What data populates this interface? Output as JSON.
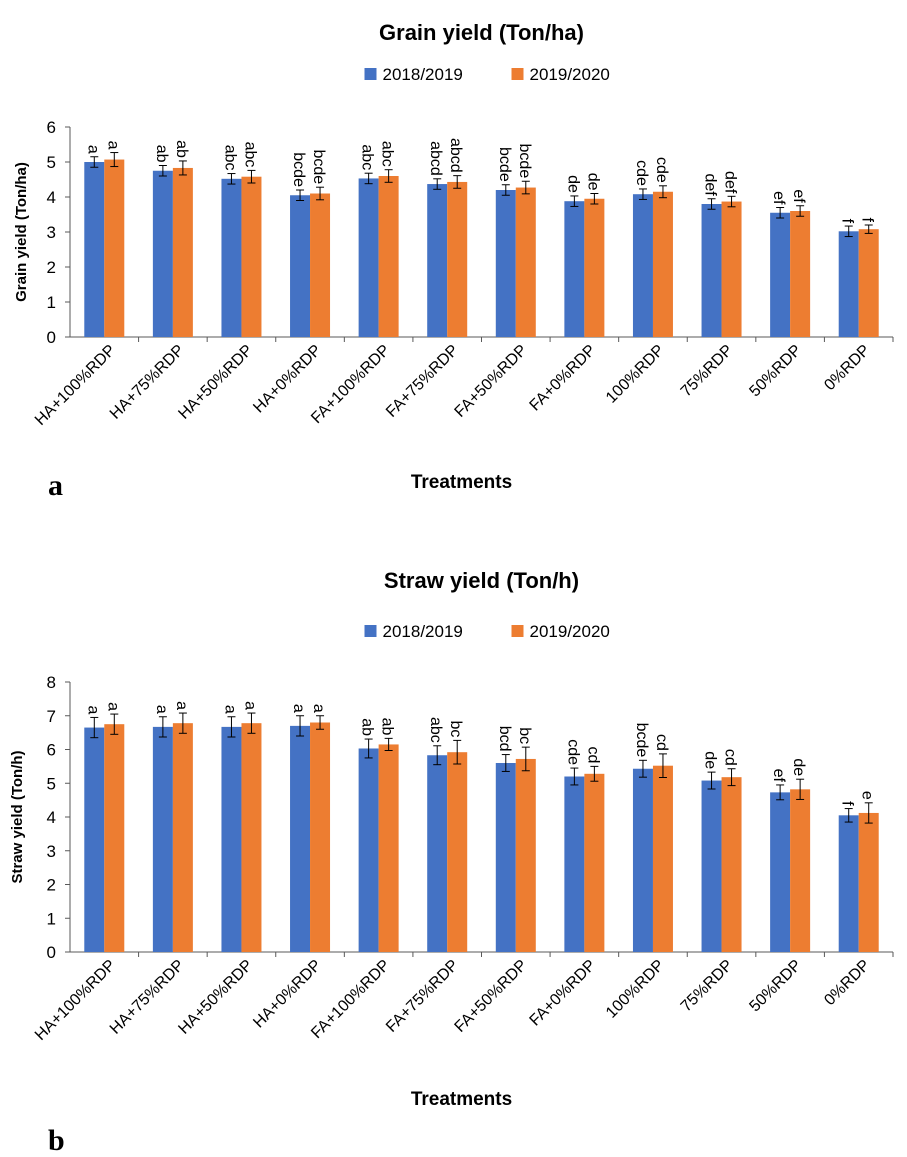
{
  "colors": {
    "series_1": "#4472C4",
    "series_2": "#ED7D31",
    "axis": "#595959",
    "errorbar": "#000000"
  },
  "chart_data": [
    {
      "type": "bar",
      "title": "Grain yield  (Ton/ha)",
      "xlabel": "Treatments",
      "ylabel": "Grain yield  (Ton/ha)",
      "panel_label": "a",
      "ylim": [
        0,
        6
      ],
      "yticks": [
        "0",
        "1",
        "2",
        "3",
        "4",
        "5",
        "6"
      ],
      "grid": false,
      "legend_position": "top",
      "categories": [
        "HA+100%RDP",
        "HA+75%RDP",
        "HA+50%RDP",
        "HA+0%RDP",
        "FA+100%RDP",
        "FA+75%RDP",
        "FA+50%RDP",
        "FA+0%RDP",
        "100%RDP",
        "75%RDP",
        "50%RDP",
        "0%RDP"
      ],
      "series": [
        {
          "name": "2018/2019",
          "values": [
            5.0,
            4.75,
            4.52,
            4.05,
            4.53,
            4.37,
            4.2,
            3.88,
            4.08,
            3.8,
            3.55,
            3.02
          ],
          "errors": [
            0.15,
            0.15,
            0.15,
            0.15,
            0.15,
            0.15,
            0.15,
            0.15,
            0.15,
            0.15,
            0.15,
            0.15
          ],
          "letters": [
            "a",
            "ab",
            "abc",
            "bcde",
            "abc",
            "abcd",
            "bcde",
            "de",
            "cde",
            "def",
            "ef",
            "f"
          ]
        },
        {
          "name": "2019/2020",
          "values": [
            5.07,
            4.83,
            4.58,
            4.1,
            4.6,
            4.43,
            4.27,
            3.95,
            4.15,
            3.87,
            3.6,
            3.08
          ],
          "errors": [
            0.2,
            0.2,
            0.18,
            0.18,
            0.18,
            0.18,
            0.18,
            0.15,
            0.17,
            0.15,
            0.15,
            0.12
          ],
          "letters": [
            "a",
            "ab",
            "abc",
            "bcde",
            "abc",
            "abcd",
            "bcde",
            "de",
            "cde",
            "def",
            "ef",
            "f"
          ]
        }
      ]
    },
    {
      "type": "bar",
      "title": "Straw yield (Ton/h)",
      "xlabel": "Treatments",
      "ylabel": "Straw yield (Ton/h)",
      "panel_label": "b",
      "ylim": [
        0,
        8
      ],
      "yticks": [
        "0",
        "1",
        "2",
        "3",
        "4",
        "5",
        "6",
        "7",
        "8"
      ],
      "grid": false,
      "legend_position": "top",
      "categories": [
        "HA+100%RDP",
        "HA+75%RDP",
        "HA+50%RDP",
        "HA+0%RDP",
        "FA+100%RDP",
        "FA+75%RDP",
        "FA+50%RDP",
        "FA+0%RDP",
        "100%RDP",
        "75%RDP",
        "50%RDP",
        "0%RDP"
      ],
      "series": [
        {
          "name": "2018/2019",
          "values": [
            6.65,
            6.67,
            6.67,
            6.7,
            6.03,
            5.83,
            5.6,
            5.2,
            5.43,
            5.08,
            4.73,
            4.05
          ],
          "errors": [
            0.3,
            0.3,
            0.3,
            0.3,
            0.28,
            0.28,
            0.25,
            0.25,
            0.25,
            0.25,
            0.22,
            0.2
          ],
          "letters": [
            "a",
            "a",
            "a",
            "a",
            "ab",
            "abc",
            "bcd",
            "cde",
            "bcde",
            "de",
            "ef",
            "f"
          ]
        },
        {
          "name": "2019/2020",
          "values": [
            6.75,
            6.78,
            6.78,
            6.8,
            6.15,
            5.92,
            5.72,
            5.28,
            5.52,
            5.18,
            4.82,
            4.12
          ],
          "errors": [
            0.3,
            0.3,
            0.3,
            0.2,
            0.18,
            0.35,
            0.35,
            0.22,
            0.35,
            0.25,
            0.3,
            0.3
          ],
          "letters": [
            "a",
            "a",
            "a",
            "a",
            "ab",
            "bc",
            "bc",
            "cd",
            "cd",
            "cd",
            "de",
            "e"
          ]
        }
      ]
    }
  ]
}
